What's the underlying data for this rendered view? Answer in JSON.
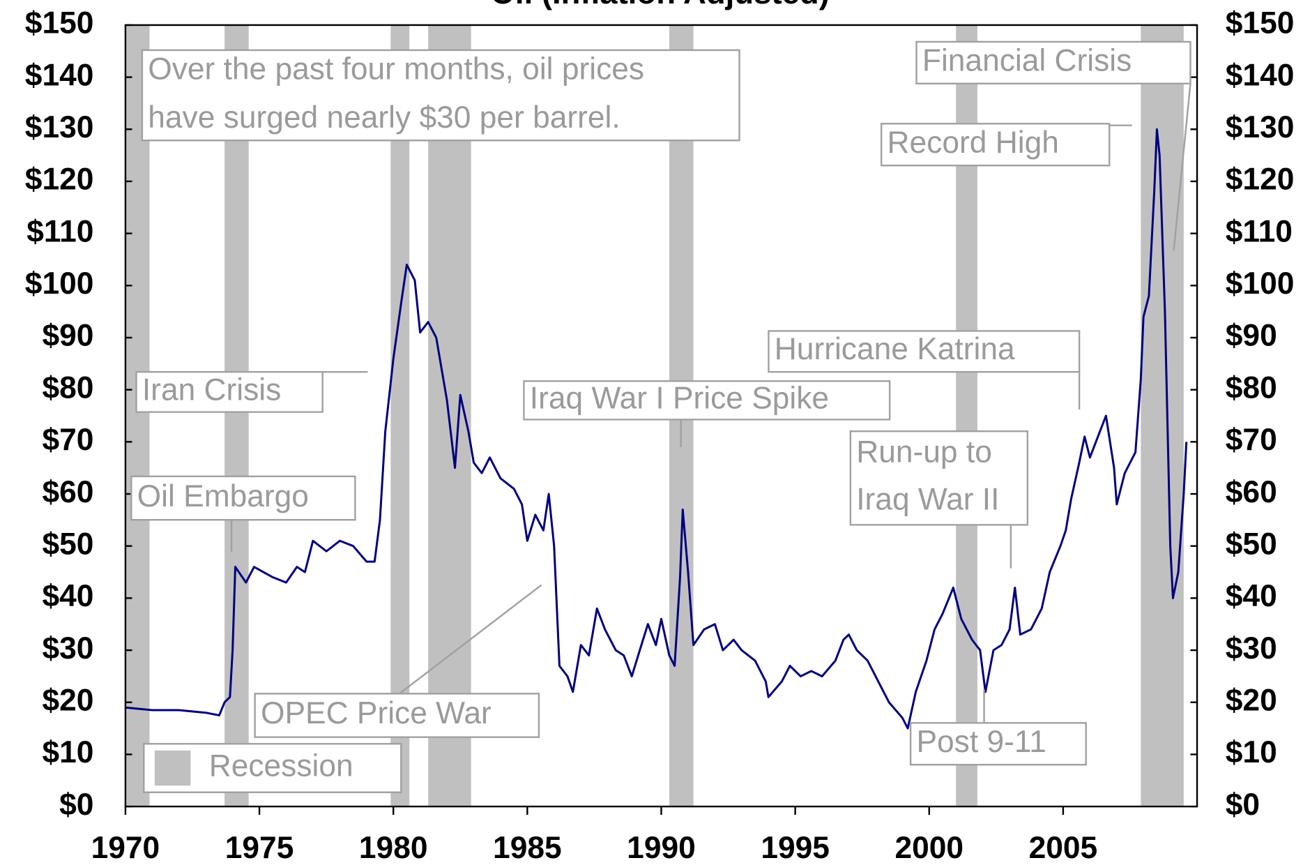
{
  "chart_data": {
    "type": "line",
    "title": "Oil (Inflation Adjusted)",
    "color": "#000080",
    "x": [
      1970.0,
      1971.0,
      1972.0,
      1973.0,
      1973.5,
      1973.7,
      1973.9,
      1974.0,
      1974.1,
      1974.5,
      1974.8,
      1975.5,
      1976.0,
      1976.4,
      1976.7,
      1977.0,
      1977.5,
      1978.0,
      1978.5,
      1979.0,
      1979.3,
      1979.5,
      1979.7,
      1980.0,
      1980.3,
      1980.5,
      1980.8,
      1981.0,
      1981.3,
      1981.6,
      1982.0,
      1982.3,
      1982.5,
      1982.8,
      1983.0,
      1983.3,
      1983.6,
      1984.0,
      1984.5,
      1984.8,
      1985.0,
      1985.3,
      1985.6,
      1985.8,
      1986.0,
      1986.2,
      1986.5,
      1986.7,
      1987.0,
      1987.3,
      1987.6,
      1987.9,
      1988.3,
      1988.6,
      1988.9,
      1989.2,
      1989.5,
      1989.8,
      1990.0,
      1990.3,
      1990.5,
      1990.7,
      1990.8,
      1991.0,
      1991.2,
      1991.6,
      1992.0,
      1992.3,
      1992.7,
      1993.0,
      1993.5,
      1993.9,
      1994.0,
      1994.5,
      1994.8,
      1995.2,
      1995.6,
      1996.0,
      1996.5,
      1996.8,
      1997.0,
      1997.3,
      1997.7,
      1998.0,
      1998.5,
      1999.0,
      1999.2,
      1999.5,
      1999.9,
      2000.2,
      2000.5,
      2000.9,
      2001.2,
      2001.6,
      2001.9,
      2002.1,
      2002.4,
      2002.7,
      2003.0,
      2003.2,
      2003.4,
      2003.8,
      2004.2,
      2004.5,
      2004.9,
      2005.1,
      2005.3,
      2005.6,
      2005.8,
      2006.0,
      2006.3,
      2006.6,
      2006.9,
      2007.0,
      2007.3,
      2007.7,
      2007.9,
      2008.0,
      2008.2,
      2008.4,
      2008.5,
      2008.6,
      2008.8,
      2009.0,
      2009.1,
      2009.3,
      2009.5,
      2009.6
    ],
    "values": [
      19,
      18.5,
      18.5,
      18,
      17.5,
      20,
      21,
      30,
      46,
      43,
      46,
      44,
      43,
      46,
      45,
      51,
      49,
      51,
      50,
      47,
      47,
      55,
      72,
      86,
      97,
      104,
      101,
      91,
      93,
      90,
      78,
      65,
      79,
      72,
      66,
      64,
      67,
      63,
      61,
      58,
      51,
      56,
      53,
      60,
      50,
      27,
      25,
      22,
      31,
      29,
      38,
      34,
      30,
      29,
      25,
      30,
      35,
      31,
      36,
      29,
      27,
      44,
      57,
      45,
      31,
      34,
      35,
      30,
      32,
      30,
      28,
      24,
      21,
      24,
      27,
      25,
      26,
      25,
      28,
      32,
      33,
      30,
      28,
      25,
      20,
      17,
      15,
      22,
      28,
      34,
      37,
      42,
      36,
      32,
      30,
      22,
      30,
      31,
      34,
      42,
      33,
      34,
      38,
      45,
      50,
      53,
      59,
      66,
      71,
      67,
      71,
      75,
      65,
      58,
      64,
      68,
      82,
      94,
      98,
      118,
      130,
      125,
      95,
      50,
      40,
      45,
      60,
      70
    ],
    "recessions": [
      [
        1970.0,
        1970.9
      ],
      [
        1973.7,
        1974.6
      ],
      [
        1979.9,
        1980.6
      ],
      [
        1981.3,
        1982.9
      ],
      [
        1990.3,
        1991.2
      ],
      [
        2001.0,
        2001.8
      ],
      [
        2007.9,
        2009.5
      ]
    ],
    "recession_color": "#c0c0c0",
    "recession_label": "Recession",
    "xlim": [
      1970,
      2010
    ],
    "xticks": [
      1970,
      1975,
      1980,
      1985,
      1990,
      1995,
      2000,
      2005
    ],
    "ylim": [
      0,
      150
    ],
    "yticks": [
      {
        "value": 0,
        "label": "$0"
      },
      {
        "value": 10,
        "label": "$10"
      },
      {
        "value": 20,
        "label": "$20"
      },
      {
        "value": 30,
        "label": "$30"
      },
      {
        "value": 40,
        "label": "$40"
      },
      {
        "value": 50,
        "label": "$50"
      },
      {
        "value": 60,
        "label": "$60"
      },
      {
        "value": 70,
        "label": "$70"
      },
      {
        "value": 80,
        "label": "$80"
      },
      {
        "value": 90,
        "label": "$90"
      },
      {
        "value": 100,
        "label": "$100"
      },
      {
        "value": 110,
        "label": "$110"
      },
      {
        "value": 120,
        "label": "$120"
      },
      {
        "value": 130,
        "label": "$130"
      },
      {
        "value": 140,
        "label": "$140"
      },
      {
        "value": 150,
        "label": "$150"
      }
    ],
    "y2lim": [
      0,
      150
    ],
    "y2ticks": [
      {
        "value": 0,
        "label": "$0"
      },
      {
        "value": 10,
        "label": "$10"
      },
      {
        "value": 20,
        "label": "$20"
      },
      {
        "value": 30,
        "label": "$30"
      },
      {
        "value": 40,
        "label": "$40"
      },
      {
        "value": 50,
        "label": "$50"
      },
      {
        "value": 60,
        "label": "$60"
      },
      {
        "value": 70,
        "label": "$70"
      },
      {
        "value": 80,
        "label": "$80"
      },
      {
        "value": 90,
        "label": "$90"
      },
      {
        "value": 100,
        "label": "$100"
      },
      {
        "value": 110,
        "label": "$110"
      },
      {
        "value": 120,
        "label": "$120"
      },
      {
        "value": 130,
        "label": "$130"
      },
      {
        "value": 140,
        "label": "$140"
      },
      {
        "value": 150,
        "label": "$150"
      }
    ],
    "annotations": [
      [
        "Over the past four months, oil prices",
        "have surged nearly $30 per barrel."
      ],
      [
        "Financial Crisis"
      ],
      [
        "Record High"
      ],
      [
        "Iran Crisis"
      ],
      [
        "Oil Embargo"
      ],
      [
        "Iraq War I Price Spike"
      ],
      [
        "Hurricane Katrina"
      ],
      [
        "Run-up to",
        "Iraq War II"
      ],
      [
        "OPEC Price War"
      ],
      [
        "Post 9-11"
      ]
    ]
  }
}
